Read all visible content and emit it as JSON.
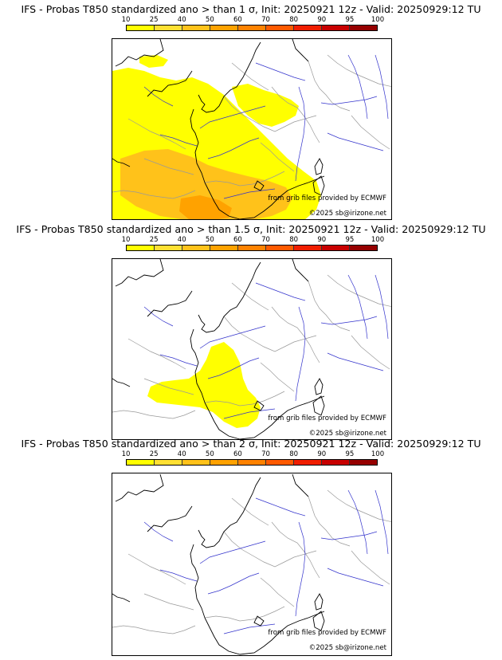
{
  "colorbar": {
    "ticks": [
      "10",
      "25",
      "40",
      "50",
      "60",
      "70",
      "80",
      "90",
      "95",
      "100"
    ],
    "colors": [
      "#ffff00",
      "#ffe033",
      "#ffc21a",
      "#ffa200",
      "#ff8200",
      "#ff5a00",
      "#f01e00",
      "#c80000",
      "#960000",
      "#5a0000"
    ]
  },
  "panels": [
    {
      "title": "IFS - Probas T850  standardized ano > than 1 σ, Init: 20250921 12z - Valid: 20250929:12 TU",
      "credit_source": "from grib files provided by ECMWF",
      "credit_copyright": "©2025 sb@irizone.net",
      "probability_level": "large"
    },
    {
      "title": "IFS - Probas T850  standardized ano > than 1.5 σ, Init: 20250921 12z - Valid: 20250929:12 TU",
      "credit_source": "from grib files provided by ECMWF",
      "credit_copyright": "©2025 sb@irizone.net",
      "probability_level": "medium"
    },
    {
      "title": "IFS - Probas T850  standardized ano > than 2 σ, Init: 20250921 12z - Valid: 20250929:12 TU",
      "credit_source": "from grib files provided by ECMWF",
      "credit_copyright": "©2025 sb@irizone.net",
      "probability_level": "none"
    }
  ],
  "map_features": {
    "coast_color": "#000000",
    "border_color": "#999999",
    "river_color": "#3333cc",
    "field_low_color": "#ffff00",
    "field_mid_color": "#ffc21a",
    "field_high_color": "#ffa200"
  }
}
